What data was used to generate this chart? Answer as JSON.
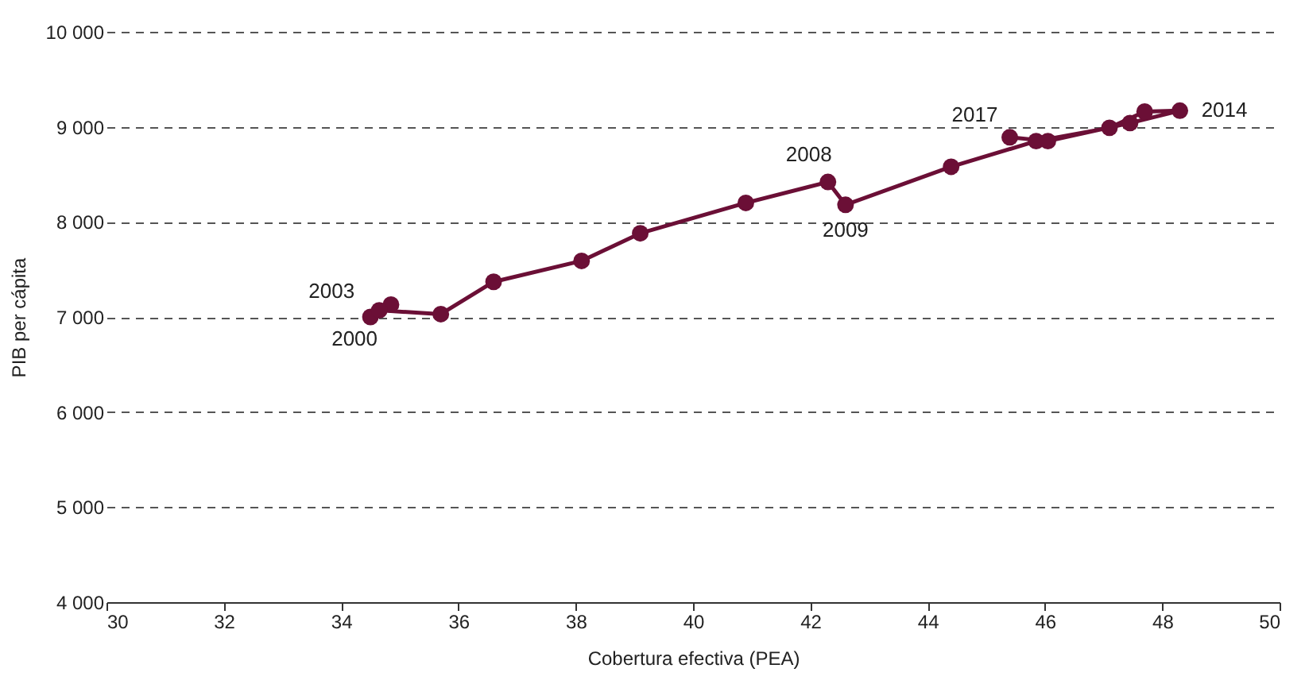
{
  "chart_data": {
    "type": "line",
    "xlabel": "Cobertura efectiva (PEA)",
    "ylabel": "PIB per cápita",
    "x": [
      34.5,
      34.85,
      34.65,
      35.7,
      36.6,
      38.1,
      39.1,
      40.9,
      42.3,
      42.6,
      44.4,
      45.85,
      47.1,
      47.7,
      48.3,
      47.45,
      46.05,
      45.4
    ],
    "series": [
      {
        "color": "#6b0f36",
        "values": [
          7000,
          7130,
          7070,
          7030,
          7370,
          7590,
          7880,
          8200,
          8420,
          8180,
          8580,
          8850,
          8990,
          9160,
          9170,
          9040,
          8850,
          8890
        ]
      }
    ],
    "xlim": [
      30,
      50
    ],
    "xticks": [
      30,
      32,
      34,
      36,
      38,
      40,
      42,
      44,
      46,
      48,
      50
    ],
    "ylim": [
      4000,
      10000
    ],
    "yticks": [
      4000,
      5000,
      6000,
      7000,
      8000,
      9000,
      10000
    ],
    "grid": "y",
    "marker": "circle",
    "line_style": "solid",
    "annotations": [
      {
        "text": "2003",
        "x": 34.65,
        "y": 7070
      },
      {
        "text": "2000",
        "x": 34.5,
        "y": 7000
      },
      {
        "text": "2008",
        "x": 42.3,
        "y": 8420
      },
      {
        "text": "2009",
        "x": 42.6,
        "y": 8180
      },
      {
        "text": "2017",
        "x": 45.4,
        "y": 8890
      },
      {
        "text": "2014",
        "x": 48.3,
        "y": 9170
      }
    ]
  }
}
